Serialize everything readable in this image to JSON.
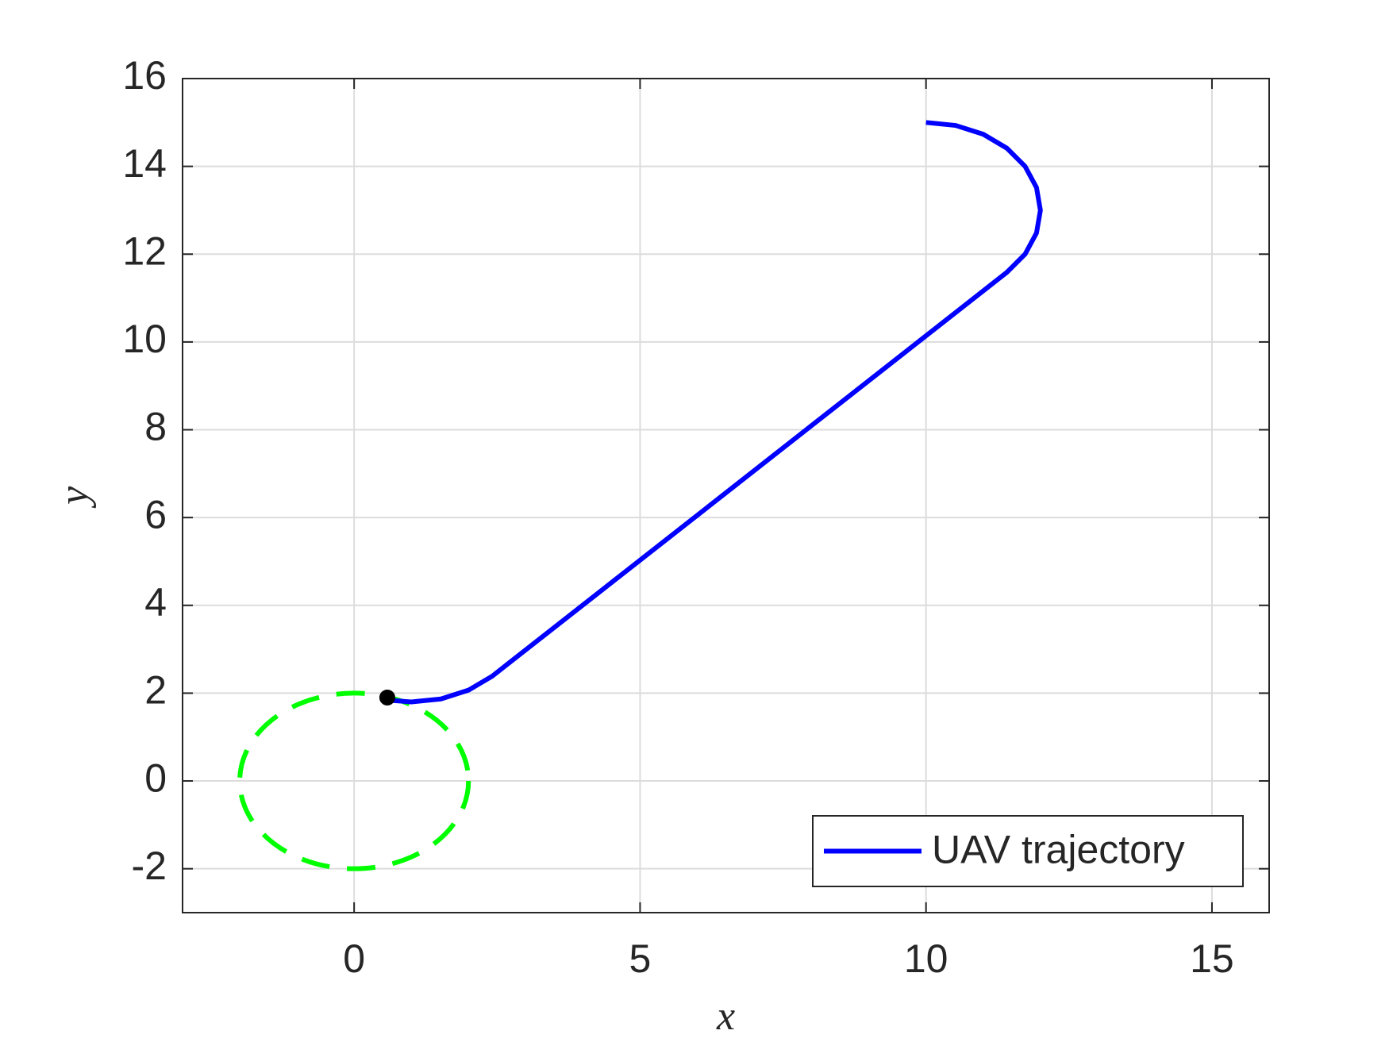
{
  "chart_data": {
    "type": "line",
    "xlabel": "x",
    "ylabel": "y",
    "xlim": [
      -3,
      16
    ],
    "ylim": [
      -3,
      16
    ],
    "xticks": [
      0,
      5,
      10,
      15
    ],
    "yticks": [
      -2,
      0,
      2,
      4,
      6,
      8,
      10,
      12,
      14,
      16
    ],
    "grid": true,
    "legend_position": "lower right",
    "series": [
      {
        "name": "UAV trajectory",
        "color": "#0000ff",
        "x": [
          10,
          10.518,
          11,
          11.414,
          11.732,
          11.932,
          12,
          11.932,
          11.732,
          11.414,
          2.414,
          2,
          1.518,
          1,
          0.618
        ],
        "y": [
          15,
          14.932,
          14.732,
          14.414,
          14,
          13.518,
          13,
          12.482,
          12,
          11.586,
          2.386,
          2.068,
          1.868,
          1.8,
          1.837
        ]
      }
    ],
    "marker": {
      "x": 0.58,
      "y": 1.9,
      "color": "#000000"
    },
    "circle": {
      "center": [
        0,
        0
      ],
      "radius": 2,
      "color": "#00ff00"
    }
  }
}
